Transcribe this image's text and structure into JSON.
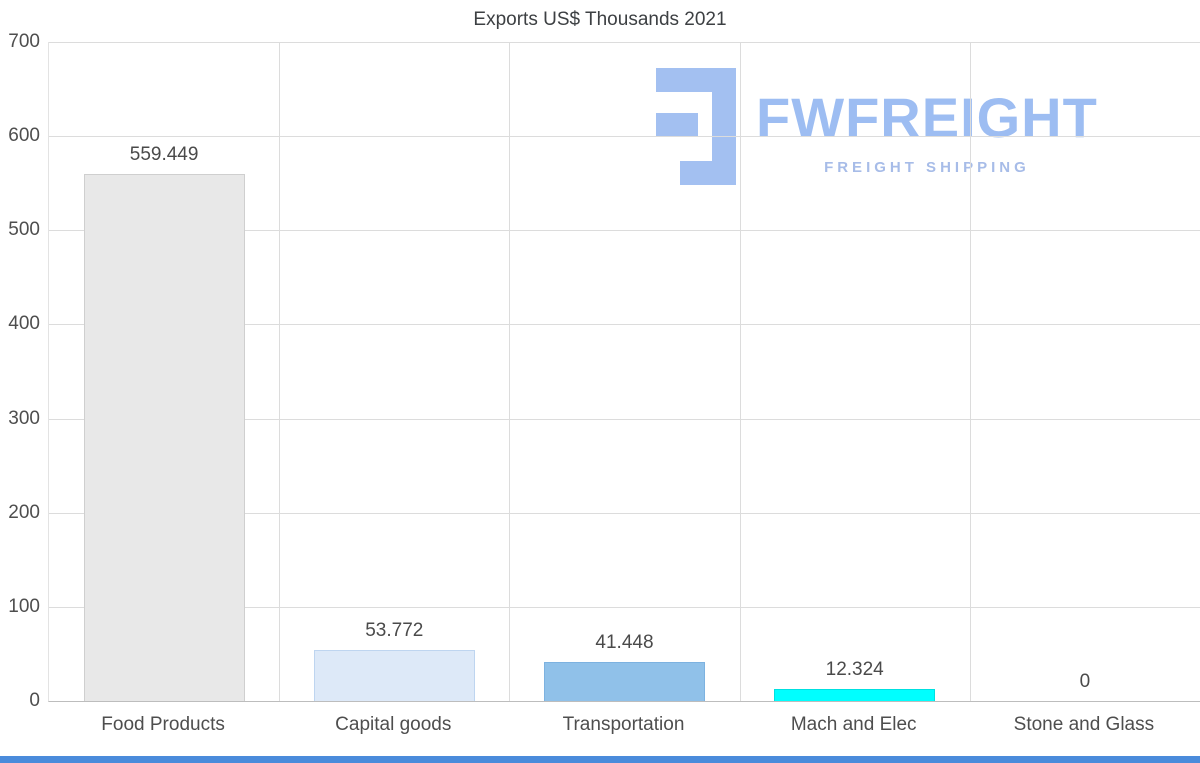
{
  "title": "Exports US$ Thousands 2021",
  "logo": {
    "name": "FWFREIGHT",
    "tagline": "FREIGHT SHIPPING"
  },
  "colors": {
    "logo_icon": "#a3c0f1",
    "logo_name": "#9dbdf2",
    "logo_tagline": "#a7bce8",
    "footer_bar": "#4a8bdb",
    "grid": "#dcdcdc",
    "axis_text": "#4e4e4e",
    "title_text": "#3d4043"
  },
  "chart_data": {
    "type": "bar",
    "title": "Exports US$ Thousands 2021",
    "categories": [
      "Food Products",
      "Capital goods",
      "Transportation",
      "Mach and Elec",
      "Stone and Glass"
    ],
    "values": [
      559.449,
      53.772,
      41.448,
      12.324,
      0
    ],
    "value_labels": [
      "559.449",
      "53.772",
      "41.448",
      "12.324",
      "0"
    ],
    "bar_fills": [
      "#e8e8e8",
      "#dde9f8",
      "#90c1e9",
      "#00ffff",
      "#00ffff"
    ],
    "bar_borders": [
      "#cfcfcf",
      "#bed5f0",
      "#7db2e0",
      "#00e0e0",
      "#00e0e0"
    ],
    "ylim": [
      0,
      700
    ],
    "yticks": [
      0,
      100,
      200,
      300,
      400,
      500,
      600,
      700
    ],
    "grid": true,
    "legend": false,
    "xlabel": "",
    "ylabel": ""
  }
}
